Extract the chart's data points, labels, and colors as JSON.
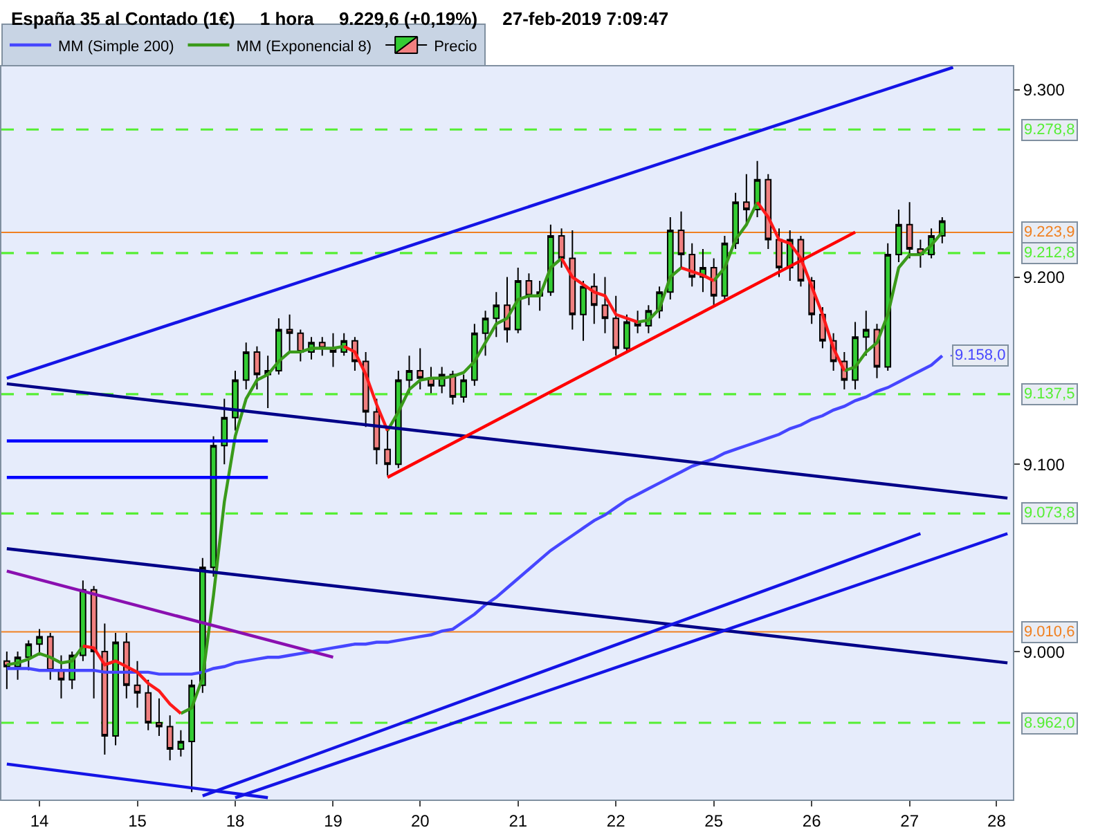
{
  "chart_data": {
    "type": "candlestick",
    "title": "España 35 al Contado (1€)     1 hora     9.229,6 (+0,19%)     27-feb-2019 7:09:47",
    "categories": [
      null,
      null,
      null,
      "14",
      null,
      null,
      null,
      null,
      null,
      null,
      null,
      null,
      "15",
      null,
      null,
      null,
      null,
      null,
      null,
      null,
      null,
      "18",
      null,
      null,
      null,
      null,
      null,
      null,
      null,
      null,
      "19",
      null,
      null,
      null,
      null,
      null,
      null,
      null,
      "20",
      null,
      null,
      null,
      null,
      null,
      null,
      null,
      null,
      "21",
      null,
      null,
      null,
      null,
      null,
      null,
      null,
      null,
      "22",
      null,
      null,
      null,
      null,
      null,
      null,
      null,
      null,
      "25",
      null,
      null,
      null,
      null,
      null,
      null,
      null,
      null,
      "26",
      null,
      null,
      null,
      null,
      null,
      null,
      null,
      null,
      "27",
      null,
      null,
      null,
      null,
      null,
      null,
      null,
      "28",
      null
    ],
    "series": [
      {
        "name": "Precio",
        "ohlc": [
          [
            8995,
            9000,
            8980,
            8992
          ],
          [
            8992,
            9000,
            8985,
            8997
          ],
          [
            8997,
            9006,
            8990,
            9004
          ],
          [
            9004,
            9012,
            8998,
            9008
          ],
          [
            9008,
            9010,
            8985,
            8990
          ],
          [
            8990,
            8998,
            8975,
            8985
          ],
          [
            8985,
            9000,
            8980,
            8998
          ],
          [
            8998,
            9038,
            8995,
            9033
          ],
          [
            9033,
            9035,
            8975,
            9000
          ],
          [
            9000,
            9015,
            8945,
            8955
          ],
          [
            8955,
            9010,
            8950,
            9005
          ],
          [
            9005,
            9010,
            8975,
            8982
          ],
          [
            8982,
            8995,
            8970,
            8978
          ],
          [
            8978,
            8985,
            8958,
            8962
          ],
          [
            8962,
            8975,
            8955,
            8960
          ],
          [
            8960,
            8966,
            8942,
            8948
          ],
          [
            8948,
            8958,
            8944,
            8952
          ],
          [
            8952,
            8985,
            8925,
            8982
          ],
          [
            8982,
            9050,
            8978,
            9045
          ],
          [
            9045,
            9115,
            9040,
            9110
          ],
          [
            9110,
            9135,
            9100,
            9125
          ],
          [
            9125,
            9150,
            9118,
            9145
          ],
          [
            9145,
            9165,
            9140,
            9160
          ],
          [
            9160,
            9163,
            9140,
            9148
          ],
          [
            9148,
            9158,
            9130,
            9150
          ],
          [
            9150,
            9178,
            9148,
            9172
          ],
          [
            9172,
            9180,
            9160,
            9170
          ],
          [
            9170,
            9172,
            9155,
            9160
          ],
          [
            9160,
            9168,
            9156,
            9165
          ],
          [
            9165,
            9168,
            9158,
            9162
          ],
          [
            9162,
            9170,
            9152,
            9160
          ],
          [
            9160,
            9170,
            9158,
            9166
          ],
          [
            9166,
            9168,
            9150,
            9155
          ],
          [
            9155,
            9160,
            9120,
            9128
          ],
          [
            9128,
            9135,
            9100,
            9108
          ],
          [
            9108,
            9118,
            9094,
            9100
          ],
          [
            9100,
            9150,
            9098,
            9145
          ],
          [
            9145,
            9158,
            9138,
            9150
          ],
          [
            9150,
            9162,
            9140,
            9146
          ],
          [
            9146,
            9152,
            9138,
            9142
          ],
          [
            9142,
            9152,
            9138,
            9148
          ],
          [
            9148,
            9150,
            9132,
            9136
          ],
          [
            9136,
            9148,
            9133,
            9145
          ],
          [
            9145,
            9175,
            9142,
            9170
          ],
          [
            9170,
            9182,
            9158,
            9178
          ],
          [
            9178,
            9192,
            9168,
            9185
          ],
          [
            9185,
            9200,
            9165,
            9172
          ],
          [
            9172,
            9205,
            9170,
            9198
          ],
          [
            9198,
            9202,
            9185,
            9190
          ],
          [
            9190,
            9198,
            9182,
            9192
          ],
          [
            9192,
            9228,
            9190,
            9222
          ],
          [
            9222,
            9226,
            9205,
            9210
          ],
          [
            9210,
            9225,
            9172,
            9180
          ],
          [
            9180,
            9198,
            9166,
            9195
          ],
          [
            9195,
            9202,
            9175,
            9185
          ],
          [
            9185,
            9200,
            9170,
            9178
          ],
          [
            9178,
            9190,
            9158,
            9162
          ],
          [
            9162,
            9180,
            9160,
            9176
          ],
          [
            9176,
            9182,
            9170,
            9174
          ],
          [
            9174,
            9185,
            9170,
            9182
          ],
          [
            9182,
            9195,
            9178,
            9192
          ],
          [
            9192,
            9232,
            9188,
            9225
          ],
          [
            9225,
            9235,
            9205,
            9212
          ],
          [
            9212,
            9218,
            9195,
            9200
          ],
          [
            9200,
            9215,
            9192,
            9205
          ],
          [
            9205,
            9210,
            9185,
            9190
          ],
          [
            9190,
            9222,
            9188,
            9218
          ],
          [
            9218,
            9245,
            9215,
            9240
          ],
          [
            9240,
            9255,
            9228,
            9236
          ],
          [
            9236,
            9262,
            9232,
            9252
          ],
          [
            9252,
            9255,
            9215,
            9220
          ],
          [
            9220,
            9226,
            9200,
            9205
          ],
          [
            9205,
            9225,
            9198,
            9220
          ],
          [
            9220,
            9222,
            9195,
            9198
          ],
          [
            9198,
            9200,
            9175,
            9180
          ],
          [
            9180,
            9184,
            9162,
            9166
          ],
          [
            9166,
            9170,
            9150,
            9155
          ],
          [
            9155,
            9160,
            9140,
            9145
          ],
          [
            9145,
            9176,
            9140,
            9168
          ],
          [
            9168,
            9182,
            9158,
            9172
          ],
          [
            9172,
            9175,
            9146,
            9152
          ],
          [
            9152,
            9218,
            9150,
            9212
          ],
          [
            9212,
            9236,
            9208,
            9228
          ],
          [
            9228,
            9240,
            9210,
            9215
          ],
          [
            9215,
            9220,
            9205,
            9212
          ],
          [
            9212,
            9226,
            9210,
            9222
          ],
          [
            9222,
            9232,
            9218,
            9230
          ],
          null,
          null,
          null,
          null,
          null,
          null
        ]
      },
      {
        "type": "line",
        "name": "MM (Simple 200)",
        "color": "#4646ff",
        "values": [
          8991,
          8991,
          8991,
          8990,
          8990,
          8990,
          8990,
          8990,
          8990,
          8989,
          8989,
          8989,
          8989,
          8989,
          8988,
          8988,
          8988,
          8988,
          8989,
          8991,
          8992,
          8994,
          8995,
          8996,
          8997,
          8997,
          8998,
          8999,
          9000,
          9001,
          9002,
          9003,
          9004,
          9004,
          9005,
          9005,
          9006,
          9007,
          9008,
          9009,
          9011,
          9012,
          9016,
          9020,
          9025,
          9029,
          9034,
          9039,
          9044,
          9049,
          9054,
          9058,
          9062,
          9066,
          9070,
          9073,
          9077,
          9081,
          9084,
          9087,
          9090,
          9093,
          9096,
          9099,
          9101,
          9103,
          9106,
          9108,
          9110,
          9112,
          9114,
          9116,
          9119,
          9121,
          9124,
          9126,
          9129,
          9131,
          9134,
          9136,
          9139,
          9141,
          9144,
          9147,
          9150,
          9153,
          9158,
          null,
          null,
          null,
          null,
          null,
          null
        ],
        "value_labels": [
          null,
          null,
          null,
          null,
          null,
          null,
          null,
          null,
          null,
          null,
          null,
          null,
          null,
          null,
          null,
          null,
          null,
          null,
          null,
          null,
          null,
          null,
          null,
          null,
          null,
          null,
          null,
          null,
          null,
          null,
          null,
          null,
          null,
          null,
          null,
          null,
          null,
          null,
          null,
          null,
          null,
          null,
          null,
          null,
          null,
          null,
          null,
          null,
          null,
          null,
          null,
          null,
          null,
          null,
          null,
          null,
          null,
          null,
          null,
          null,
          null,
          null,
          null,
          null,
          null,
          null,
          null,
          null,
          null,
          null,
          null,
          null,
          null,
          null,
          null,
          null,
          null,
          null,
          null,
          null,
          null,
          null,
          null,
          null,
          null,
          null,
          "9.158,0",
          null,
          null,
          null,
          null,
          null,
          null
        ]
      },
      {
        "type": "line",
        "name": "MM (Exponencial 8)",
        "color": "#3a9a1a",
        "values": [
          8993,
          8994,
          8996,
          8999,
          8997,
          8994,
          8995,
          9003,
          null,
          8993,
          8995,
          null,
          null,
          null,
          null,
          null,
          8967,
          8970,
          8986,
          9030,
          9080,
          9115,
          9135,
          9145,
          9148,
          9155,
          9160,
          9160,
          9162,
          9162,
          9162,
          9163,
          null,
          null,
          null,
          9118,
          9128,
          9140,
          9145,
          9146,
          9146,
          9147,
          9149,
          9155,
          9165,
          9175,
          9178,
          9188,
          9190,
          9190,
          9205,
          9210,
          null,
          null,
          null,
          null,
          null,
          null,
          9176,
          9177,
          9183,
          9200,
          9205,
          null,
          null,
          9198,
          9205,
          9220,
          9228,
          9240,
          null,
          null,
          null,
          null,
          null,
          null,
          null,
          9150,
          9152,
          9160,
          9165,
          9180,
          9205,
          9212,
          9212,
          9217,
          9224,
          null,
          null,
          null,
          null,
          null,
          null
        ]
      },
      {
        "type": "line",
        "color": "#ff1a1a",
        "values": [
          null,
          null,
          null,
          null,
          null,
          null,
          null,
          9003,
          9002,
          8993,
          8995,
          8992,
          8989,
          8983,
          8979,
          8972,
          8967,
          null,
          null,
          null,
          null,
          null,
          null,
          null,
          null,
          null,
          null,
          null,
          null,
          null,
          null,
          9163,
          9160,
          9148,
          9132,
          9118,
          null,
          null,
          null,
          null,
          null,
          null,
          null,
          null,
          null,
          null,
          null,
          null,
          null,
          null,
          null,
          9210,
          9200,
          9196,
          9192,
          9190,
          9180,
          9178,
          9176,
          null,
          null,
          null,
          9205,
          9203,
          9201,
          9198,
          null,
          null,
          null,
          9240,
          9232,
          9220,
          9218,
          9210,
          9195,
          9180,
          9162,
          9150,
          null,
          null,
          null,
          null,
          null,
          null,
          null,
          null,
          null,
          null,
          null,
          null,
          null,
          null,
          null
        ]
      },
      {
        "type": "line",
        "color": "#1414e6",
        "values": [
          9146,
          null,
          null,
          null,
          null,
          null,
          null,
          null,
          null,
          null,
          null,
          null,
          null,
          null,
          null,
          null,
          null,
          null,
          null,
          null,
          null,
          null,
          null,
          null,
          null,
          null,
          null,
          null,
          null,
          null,
          null,
          null,
          null,
          null,
          null,
          null,
          null,
          null,
          null,
          null,
          null,
          null,
          null,
          null,
          null,
          null,
          null,
          null,
          null,
          null,
          null,
          null,
          null,
          null,
          null,
          null,
          null,
          null,
          null,
          null,
          null,
          null,
          null,
          null,
          null,
          null,
          null,
          null,
          null,
          null,
          null,
          null,
          null,
          null,
          null,
          null,
          null,
          null,
          null,
          null,
          null,
          null,
          null,
          null,
          null,
          null,
          null,
          9312,
          null,
          null,
          null,
          null,
          null
        ]
      },
      {
        "type": "line",
        "color": "#000088",
        "values": [
          9143,
          null,
          null,
          null,
          null,
          null,
          null,
          null,
          null,
          null,
          null,
          null,
          null,
          null,
          null,
          null,
          null,
          null,
          null,
          null,
          null,
          null,
          null,
          null,
          null,
          null,
          null,
          null,
          null,
          null,
          null,
          null,
          null,
          null,
          null,
          null,
          null,
          null,
          null,
          null,
          null,
          null,
          null,
          null,
          null,
          null,
          null,
          null,
          null,
          null,
          null,
          null,
          null,
          null,
          null,
          null,
          null,
          null,
          null,
          null,
          null,
          null,
          null,
          null,
          null,
          null,
          null,
          null,
          null,
          null,
          null,
          null,
          null,
          null,
          null,
          null,
          null,
          null,
          null,
          null,
          null,
          null,
          null,
          null,
          null,
          null,
          null,
          null,
          null,
          null,
          null,
          null,
          9082
        ]
      },
      {
        "type": "line",
        "color": "#000088",
        "values": [
          9055,
          null,
          null,
          null,
          null,
          null,
          null,
          null,
          null,
          null,
          null,
          null,
          null,
          null,
          null,
          null,
          null,
          null,
          null,
          null,
          null,
          null,
          null,
          null,
          null,
          null,
          null,
          null,
          null,
          null,
          null,
          null,
          null,
          null,
          null,
          null,
          null,
          null,
          null,
          null,
          null,
          null,
          null,
          null,
          null,
          null,
          null,
          null,
          null,
          null,
          null,
          null,
          null,
          null,
          null,
          null,
          null,
          null,
          null,
          null,
          null,
          null,
          null,
          null,
          null,
          null,
          null,
          null,
          null,
          null,
          null,
          null,
          null,
          null,
          null,
          null,
          null,
          null,
          null,
          null,
          null,
          null,
          null,
          null,
          null,
          null,
          null,
          null,
          null,
          null,
          null,
          null,
          8994
        ]
      },
      {
        "type": "line",
        "color": "#8a10b0",
        "values": [
          9043,
          null,
          null,
          null,
          null,
          null,
          null,
          null,
          null,
          null,
          null,
          null,
          null,
          null,
          null,
          null,
          null,
          null,
          null,
          null,
          null,
          null,
          null,
          null,
          null,
          null,
          null,
          null,
          null,
          null,
          8997,
          null,
          null,
          null,
          null,
          null,
          null,
          null,
          null,
          null,
          null,
          null,
          null,
          null,
          null,
          null,
          null,
          null,
          null,
          null,
          null,
          null,
          null,
          null,
          null,
          null,
          null,
          null,
          null,
          null,
          null,
          null,
          null,
          null,
          null,
          null,
          null,
          null,
          null,
          null,
          null,
          null,
          null,
          null,
          null,
          null,
          null,
          null,
          null,
          null,
          null,
          null,
          null,
          null,
          null,
          null,
          null,
          null,
          null,
          null,
          null,
          null,
          null
        ]
      },
      {
        "type": "line",
        "color": "#1414e6",
        "values": [
          8940,
          null,
          null,
          null,
          null,
          null,
          null,
          null,
          null,
          null,
          null,
          null,
          null,
          null,
          null,
          null,
          null,
          null,
          null,
          null,
          null,
          null,
          null,
          null,
          8922,
          null,
          null,
          null,
          null,
          null,
          null,
          null,
          null,
          null,
          null,
          null,
          null,
          null,
          null,
          null,
          null,
          null,
          null,
          null,
          null,
          null,
          null,
          null,
          null,
          null,
          null,
          null,
          null,
          null,
          null,
          null,
          null,
          null,
          null,
          null,
          null,
          null,
          null,
          null,
          null,
          null,
          null,
          null,
          null,
          null,
          null,
          null,
          null,
          null,
          null,
          null,
          null,
          null,
          null,
          null,
          null,
          null,
          null,
          null,
          null,
          null,
          null,
          null,
          null,
          null,
          null,
          null,
          null
        ]
      },
      {
        "type": "line",
        "color": "#1414e6",
        "values": [
          null,
          null,
          null,
          null,
          null,
          null,
          null,
          null,
          null,
          null,
          null,
          null,
          null,
          null,
          null,
          null,
          null,
          null,
          8923,
          null,
          null,
          null,
          null,
          null,
          null,
          null,
          null,
          null,
          null,
          null,
          null,
          null,
          null,
          null,
          null,
          null,
          null,
          null,
          null,
          null,
          null,
          null,
          null,
          null,
          null,
          null,
          null,
          null,
          null,
          null,
          null,
          null,
          null,
          null,
          null,
          null,
          null,
          null,
          null,
          null,
          null,
          null,
          null,
          null,
          null,
          null,
          null,
          null,
          null,
          null,
          null,
          null,
          null,
          null,
          null,
          null,
          null,
          null,
          null,
          null,
          null,
          null,
          null,
          null,
          9063,
          null,
          null,
          null,
          null,
          null,
          null,
          null,
          null
        ]
      },
      {
        "type": "line",
        "color": "#1414e6",
        "values": [
          null,
          null,
          null,
          null,
          null,
          null,
          null,
          null,
          null,
          null,
          null,
          null,
          null,
          null,
          null,
          null,
          null,
          null,
          null,
          null,
          null,
          8922,
          null,
          null,
          null,
          null,
          null,
          null,
          null,
          null,
          null,
          null,
          null,
          null,
          null,
          null,
          null,
          null,
          null,
          null,
          null,
          null,
          null,
          null,
          null,
          null,
          null,
          null,
          null,
          null,
          null,
          null,
          null,
          null,
          null,
          null,
          null,
          null,
          null,
          null,
          null,
          null,
          null,
          null,
          null,
          null,
          null,
          null,
          null,
          null,
          null,
          null,
          null,
          null,
          null,
          null,
          null,
          null,
          null,
          null,
          null,
          null,
          null,
          null,
          null,
          null,
          null,
          null,
          null,
          null,
          null,
          null,
          9063
        ]
      },
      {
        "type": "line",
        "color": "#ff0000",
        "values": [
          null,
          null,
          null,
          null,
          null,
          null,
          null,
          null,
          null,
          null,
          null,
          null,
          null,
          null,
          null,
          null,
          null,
          null,
          null,
          null,
          null,
          null,
          null,
          null,
          null,
          null,
          null,
          null,
          null,
          null,
          null,
          null,
          null,
          null,
          null,
          9093,
          null,
          null,
          null,
          null,
          null,
          null,
          null,
          null,
          null,
          null,
          null,
          null,
          null,
          null,
          null,
          null,
          null,
          null,
          null,
          null,
          null,
          null,
          null,
          null,
          null,
          null,
          null,
          null,
          null,
          null,
          null,
          null,
          null,
          null,
          null,
          null,
          null,
          null,
          null,
          null,
          null,
          null,
          9224,
          null,
          null,
          null,
          null,
          null,
          null,
          null,
          null,
          null,
          null,
          null,
          null,
          null,
          null
        ]
      },
      {
        "type": "line",
        "color": "#0000ff",
        "values": [
          9112.5,
          null,
          null,
          null,
          null,
          null,
          null,
          null,
          null,
          null,
          null,
          null,
          null,
          null,
          null,
          null,
          null,
          null,
          null,
          null,
          null,
          null,
          null,
          null,
          9112.5,
          null,
          null,
          null,
          null,
          null,
          null,
          null,
          null,
          null,
          null,
          null,
          null,
          null,
          null,
          null,
          null,
          null,
          null,
          null,
          null,
          null,
          null,
          null,
          null,
          null,
          null,
          null,
          null,
          null,
          null,
          null,
          null,
          null,
          null,
          null,
          null,
          null,
          null,
          null,
          null,
          null,
          null,
          null,
          null,
          null,
          null,
          null,
          null,
          null,
          null,
          null,
          null,
          null,
          null,
          null,
          null,
          null,
          null,
          null,
          null,
          null,
          null,
          null,
          null,
          null,
          null,
          null,
          null
        ]
      },
      {
        "type": "line",
        "color": "#0000ff",
        "values": [
          9093,
          null,
          null,
          null,
          null,
          null,
          null,
          null,
          null,
          null,
          null,
          null,
          null,
          null,
          null,
          null,
          null,
          null,
          null,
          null,
          null,
          null,
          null,
          null,
          9093,
          null,
          null,
          null,
          null,
          null,
          null,
          null,
          null,
          null,
          null,
          null,
          null,
          null,
          null,
          null,
          null,
          null,
          null,
          null,
          null,
          null,
          null,
          null,
          null,
          null,
          null,
          null,
          null,
          null,
          null,
          null,
          null,
          null,
          null,
          null,
          null,
          null,
          null,
          null,
          null,
          null,
          null,
          null,
          null,
          null,
          null,
          null,
          null,
          null,
          null,
          null,
          null,
          null,
          null,
          null,
          null,
          null,
          null,
          null,
          null,
          null,
          null,
          null,
          null,
          null,
          null,
          null,
          null
        ]
      }
    ],
    "ref_lines": [
      {
        "axis": "y",
        "value": 9278.8,
        "label": "9.278,8",
        "color": "#55ee33",
        "line_style": "dashed"
      },
      {
        "axis": "y",
        "value": 9223.9,
        "label": "9.223,9",
        "color": "#f08020",
        "line_style": "solid"
      },
      {
        "axis": "y",
        "value": 9212.8,
        "label": "9.212,8",
        "color": "#55ee33",
        "line_style": "dashed"
      },
      {
        "axis": "y",
        "value": 9137.5,
        "label": "9.137,5",
        "color": "#55ee33",
        "line_style": "dashed"
      },
      {
        "axis": "y",
        "value": 9073.8,
        "label": "9.073,8",
        "color": "#55ee33",
        "line_style": "dashed"
      },
      {
        "axis": "y",
        "value": 9010.6,
        "label": "9.010,6",
        "color": "#f08020",
        "line_style": "solid"
      },
      {
        "axis": "y",
        "value": 8962.0,
        "label": "8.962,0",
        "color": "#55ee33",
        "line_style": "dashed"
      }
    ],
    "ylim": [
      8921,
      9312.5
    ],
    "yticks": [
      {
        "value": 9300,
        "label": "9.300"
      },
      {
        "value": 9200,
        "label": "9.200"
      },
      {
        "value": 9100,
        "label": "9.100"
      },
      {
        "value": 9000,
        "label": "9.000"
      }
    ],
    "grid": false,
    "legend": "top left",
    "marker": "none"
  }
}
